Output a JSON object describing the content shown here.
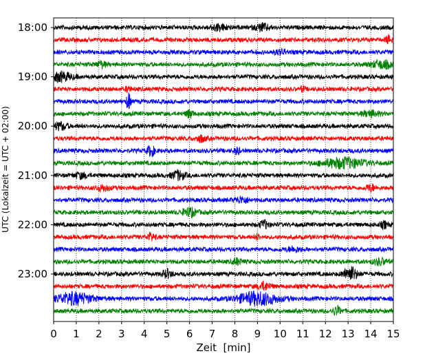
{
  "chart_data": {
    "type": "line",
    "title": "",
    "xlabel": "Zeit  [min]",
    "ylabel": "UTC (Lokalzeit = UTC + 02:00)",
    "xlim": [
      0,
      15
    ],
    "x_ticks": [
      "0",
      "1",
      "2",
      "3",
      "4",
      "5",
      "6",
      "7",
      "8",
      "9",
      "10",
      "11",
      "12",
      "13",
      "14",
      "15"
    ],
    "y_tick_labels": [
      "18:00",
      "19:00",
      "20:00",
      "21:00",
      "22:00",
      "23:00"
    ],
    "grid": "vertical dotted at each minute",
    "trace_interval_minutes": 15,
    "color_cycle": [
      "#000000",
      "#ff0000",
      "#0000ff",
      "#008000"
    ],
    "series": [
      {
        "start": "18:00",
        "color": "#000000",
        "events": [
          {
            "t": 7.3,
            "amp": 0.45,
            "w": 0.4
          },
          {
            "t": 9.2,
            "amp": 0.55,
            "w": 0.3
          }
        ]
      },
      {
        "start": "18:15",
        "color": "#ff0000",
        "events": [
          {
            "t": 14.8,
            "amp": 0.6,
            "w": 0.15
          }
        ]
      },
      {
        "start": "18:30",
        "color": "#0000ff",
        "events": [
          {
            "t": 10.0,
            "amp": 0.3,
            "w": 0.3
          }
        ]
      },
      {
        "start": "18:45",
        "color": "#008000",
        "events": [
          {
            "t": 2.1,
            "amp": 0.5,
            "w": 0.2
          },
          {
            "t": 14.5,
            "amp": 0.55,
            "w": 0.5
          }
        ]
      },
      {
        "start": "19:00",
        "color": "#000000",
        "events": [
          {
            "t": 0.3,
            "amp": 0.7,
            "w": 0.5
          }
        ]
      },
      {
        "start": "19:15",
        "color": "#ff0000",
        "events": [
          {
            "t": 3.3,
            "amp": 0.5,
            "w": 0.1
          },
          {
            "t": 11.0,
            "amp": 0.4,
            "w": 0.1
          }
        ]
      },
      {
        "start": "19:30",
        "color": "#0000ff",
        "events": [
          {
            "t": 3.3,
            "amp": 1.6,
            "w": 0.08
          }
        ]
      },
      {
        "start": "19:45",
        "color": "#008000",
        "events": [
          {
            "t": 6.0,
            "amp": 0.6,
            "w": 0.15
          },
          {
            "t": 14.0,
            "amp": 0.4,
            "w": 0.4
          }
        ]
      },
      {
        "start": "20:00",
        "color": "#000000",
        "events": [
          {
            "t": 0.3,
            "amp": 0.55,
            "w": 0.3
          }
        ]
      },
      {
        "start": "20:15",
        "color": "#ff0000",
        "events": [
          {
            "t": 6.5,
            "amp": 0.5,
            "w": 0.2
          }
        ]
      },
      {
        "start": "20:30",
        "color": "#0000ff",
        "events": [
          {
            "t": 4.3,
            "amp": 0.9,
            "w": 0.15
          },
          {
            "t": 8.1,
            "amp": 0.6,
            "w": 0.1
          }
        ]
      },
      {
        "start": "20:45",
        "color": "#008000",
        "events": [
          {
            "t": 12.8,
            "amp": 0.8,
            "w": 0.9
          }
        ]
      },
      {
        "start": "21:00",
        "color": "#000000",
        "events": [
          {
            "t": 5.5,
            "amp": 0.7,
            "w": 0.3
          },
          {
            "t": 1.2,
            "amp": 0.4,
            "w": 0.3
          }
        ]
      },
      {
        "start": "21:15",
        "color": "#ff0000",
        "events": [
          {
            "t": 2.2,
            "amp": 0.4,
            "w": 0.3
          },
          {
            "t": 14.0,
            "amp": 0.5,
            "w": 0.2
          }
        ]
      },
      {
        "start": "21:30",
        "color": "#0000ff",
        "events": [
          {
            "t": 8.3,
            "amp": 0.45,
            "w": 0.3
          }
        ]
      },
      {
        "start": "21:45",
        "color": "#008000",
        "events": [
          {
            "t": 6.0,
            "amp": 0.65,
            "w": 0.3
          }
        ]
      },
      {
        "start": "22:00",
        "color": "#000000",
        "events": [
          {
            "t": 9.3,
            "amp": 0.6,
            "w": 0.2
          },
          {
            "t": 14.6,
            "amp": 0.5,
            "w": 0.15
          }
        ]
      },
      {
        "start": "22:15",
        "color": "#ff0000",
        "events": [
          {
            "t": 4.3,
            "amp": 0.6,
            "w": 0.15
          },
          {
            "t": 9.0,
            "amp": 0.4,
            "w": 0.1
          }
        ]
      },
      {
        "start": "22:30",
        "color": "#0000ff",
        "events": [
          {
            "t": 10.6,
            "amp": 0.35,
            "w": 0.3
          }
        ]
      },
      {
        "start": "22:45",
        "color": "#008000",
        "events": [
          {
            "t": 8.1,
            "amp": 0.45,
            "w": 0.2
          },
          {
            "t": 14.4,
            "amp": 0.45,
            "w": 0.3
          }
        ]
      },
      {
        "start": "23:00",
        "color": "#000000",
        "events": [
          {
            "t": 5.0,
            "amp": 0.6,
            "w": 0.2
          },
          {
            "t": 13.1,
            "amp": 1.1,
            "w": 0.3
          }
        ]
      },
      {
        "start": "23:15",
        "color": "#ff0000",
        "events": [
          {
            "t": 9.3,
            "amp": 0.55,
            "w": 0.3
          }
        ]
      },
      {
        "start": "23:30",
        "color": "#0000ff",
        "events": [
          {
            "t": 0.9,
            "amp": 0.9,
            "w": 0.8
          },
          {
            "t": 9.0,
            "amp": 1.0,
            "w": 0.9
          }
        ]
      },
      {
        "start": "23:45",
        "color": "#008000",
        "events": [
          {
            "t": 12.5,
            "amp": 0.6,
            "w": 0.2
          }
        ]
      }
    ]
  }
}
